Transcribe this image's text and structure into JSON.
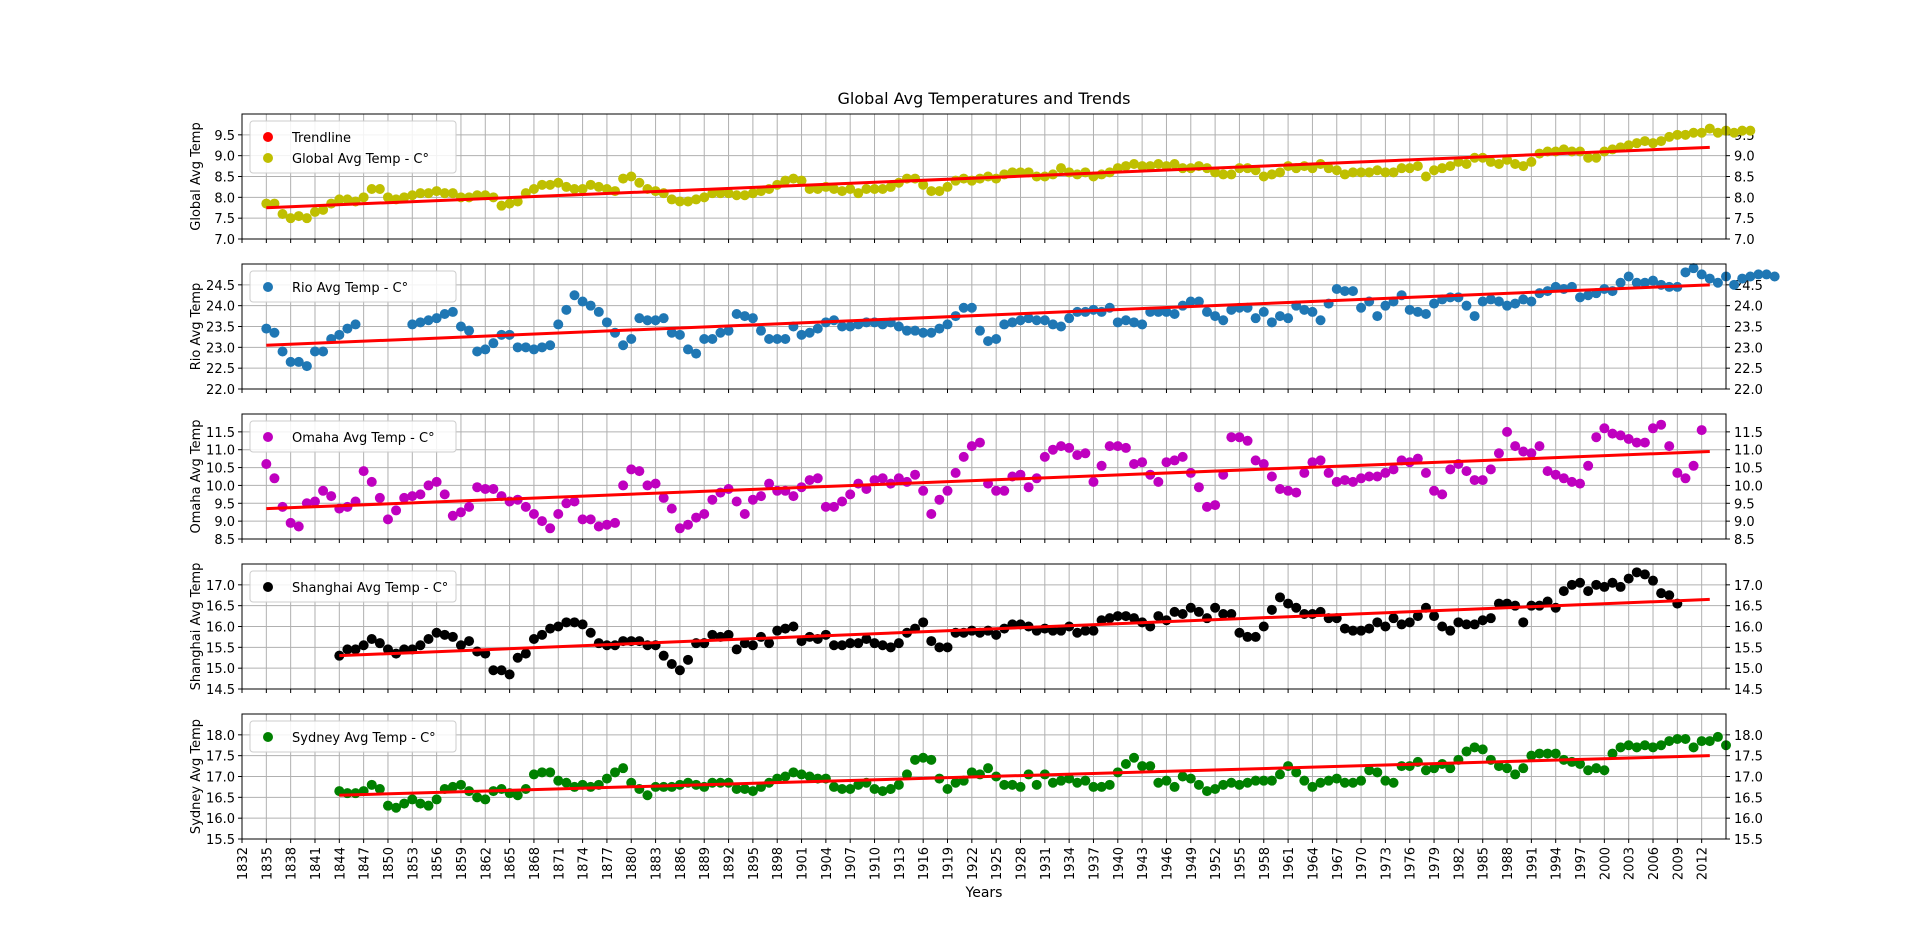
{
  "chart_data": {
    "type": "scatter",
    "title": "Global Avg Temperatures and Trends",
    "xlabel": "Years",
    "xlim": [
      1832,
      2015
    ],
    "xticks": [
      1832,
      1835,
      1838,
      1841,
      1844,
      1847,
      1850,
      1853,
      1856,
      1859,
      1862,
      1865,
      1868,
      1871,
      1874,
      1877,
      1880,
      1883,
      1886,
      1889,
      1892,
      1895,
      1898,
      1901,
      1904,
      1907,
      1910,
      1913,
      1916,
      1919,
      1922,
      1925,
      1928,
      1931,
      1934,
      1937,
      1940,
      1943,
      1946,
      1949,
      1952,
      1955,
      1958,
      1961,
      1964,
      1967,
      1970,
      1973,
      1976,
      1979,
      1982,
      1985,
      1988,
      1991,
      1994,
      1997,
      2000,
      2003,
      2006,
      2009,
      2012
    ],
    "legend_position": "upper-left",
    "grid": true,
    "trend_color": "#ff0000",
    "subplots": [
      {
        "id": "global",
        "ylabel": "Global Avg Temp",
        "ylim": [
          7.0,
          10.0
        ],
        "yticks": [
          "7.0",
          "7.5",
          "8.0",
          "8.5",
          "9.0",
          "9.5"
        ],
        "color": "#bfbf00",
        "legend": [
          "Trendline",
          "Global Avg Temp - C°"
        ],
        "trend": {
          "x": [
            1835,
            2013
          ],
          "y": [
            7.75,
            9.2
          ]
        },
        "start_year": 1835,
        "values": [
          7.85,
          7.85,
          7.6,
          7.5,
          7.55,
          7.5,
          7.65,
          7.7,
          7.85,
          7.95,
          7.95,
          7.9,
          8.0,
          8.2,
          8.2,
          8.0,
          7.95,
          8.0,
          8.05,
          8.1,
          8.1,
          8.15,
          8.1,
          8.1,
          8.0,
          8.0,
          8.05,
          8.05,
          8.0,
          7.8,
          7.85,
          7.9,
          8.1,
          8.2,
          8.3,
          8.3,
          8.35,
          8.25,
          8.2,
          8.2,
          8.3,
          8.25,
          8.2,
          8.15,
          8.45,
          8.5,
          8.35,
          8.2,
          8.15,
          8.1,
          7.95,
          7.9,
          7.9,
          7.95,
          8.0,
          8.1,
          8.1,
          8.1,
          8.05,
          8.05,
          8.1,
          8.15,
          8.2,
          8.3,
          8.4,
          8.45,
          8.4,
          8.2,
          8.2,
          8.25,
          8.2,
          8.15,
          8.2,
          8.1,
          8.2,
          8.2,
          8.2,
          8.25,
          8.35,
          8.45,
          8.45,
          8.3,
          8.15,
          8.15,
          8.25,
          8.4,
          8.45,
          8.4,
          8.45,
          8.5,
          8.45,
          8.55,
          8.6,
          8.6,
          8.6,
          8.5,
          8.5,
          8.55,
          8.7,
          8.6,
          8.55,
          8.6,
          8.5,
          8.55,
          8.6,
          8.7,
          8.75,
          8.8,
          8.75,
          8.75,
          8.8,
          8.75,
          8.8,
          8.7,
          8.7,
          8.75,
          8.7,
          8.6,
          8.55,
          8.55,
          8.7,
          8.7,
          8.65,
          8.5,
          8.55,
          8.6,
          8.75,
          8.7,
          8.75,
          8.7,
          8.8,
          8.7,
          8.65,
          8.55,
          8.6,
          8.6,
          8.6,
          8.65,
          8.6,
          8.6,
          8.7,
          8.7,
          8.75,
          8.5,
          8.65,
          8.7,
          8.75,
          8.85,
          8.8,
          8.95,
          8.95,
          8.85,
          8.8,
          8.9,
          8.8,
          8.75,
          8.85,
          9.05,
          9.1,
          9.1,
          9.15,
          9.1,
          9.1,
          8.95,
          8.95,
          9.1,
          9.15,
          9.2,
          9.25,
          9.3,
          9.35,
          9.3,
          9.35,
          9.45,
          9.5,
          9.5,
          9.55,
          9.55,
          9.65,
          9.55,
          9.6,
          9.55,
          9.6,
          9.6
        ]
      },
      {
        "id": "rio",
        "ylabel": "Rio Avg Temp",
        "ylim": [
          22.0,
          25.0
        ],
        "yticks": [
          "22.0",
          "22.5",
          "23.0",
          "23.5",
          "24.0",
          "24.5"
        ],
        "color": "#1f77b4",
        "legend": [
          "Rio Avg Temp - C°"
        ],
        "trend": {
          "x": [
            1835,
            2013
          ],
          "y": [
            23.05,
            24.5
          ]
        },
        "start_year": 1835,
        "values": [
          23.45,
          23.35,
          22.9,
          22.65,
          22.65,
          22.55,
          22.9,
          22.9,
          23.2,
          23.3,
          23.45,
          23.55,
          null,
          null,
          null,
          null,
          null,
          null,
          23.55,
          23.6,
          23.65,
          23.7,
          23.8,
          23.85,
          23.5,
          23.4,
          22.9,
          22.95,
          23.1,
          23.3,
          23.3,
          23.0,
          23.0,
          22.95,
          23.0,
          23.05,
          23.55,
          23.9,
          24.25,
          24.1,
          24.0,
          23.85,
          23.6,
          23.35,
          23.05,
          23.2,
          23.7,
          23.65,
          23.65,
          23.7,
          23.35,
          23.3,
          22.95,
          22.85,
          23.2,
          23.2,
          23.35,
          23.4,
          23.8,
          23.75,
          23.7,
          23.4,
          23.2,
          23.2,
          23.2,
          23.5,
          23.3,
          23.35,
          23.45,
          23.6,
          23.65,
          23.5,
          23.5,
          23.55,
          23.6,
          23.6,
          23.55,
          23.6,
          23.5,
          23.4,
          23.4,
          23.35,
          23.35,
          23.45,
          23.55,
          23.75,
          23.95,
          23.95,
          23.4,
          23.15,
          23.2,
          23.55,
          23.6,
          23.65,
          23.7,
          23.65,
          23.65,
          23.55,
          23.5,
          23.7,
          23.85,
          23.85,
          23.9,
          23.85,
          23.95,
          23.6,
          23.65,
          23.6,
          23.55,
          23.85,
          23.85,
          23.85,
          23.8,
          24.0,
          24.1,
          24.1,
          23.85,
          23.75,
          23.65,
          23.9,
          23.95,
          23.95,
          23.7,
          23.85,
          23.6,
          23.75,
          23.7,
          24.0,
          23.9,
          23.85,
          23.65,
          24.05,
          24.4,
          24.35,
          24.35,
          23.95,
          24.1,
          23.75,
          24.0,
          24.1,
          24.25,
          23.9,
          23.85,
          23.8,
          24.05,
          24.15,
          24.2,
          24.2,
          24.0,
          23.75,
          24.1,
          24.15,
          24.1,
          24.0,
          24.05,
          24.15,
          24.1,
          24.3,
          24.35,
          24.45,
          24.4,
          24.45,
          24.2,
          24.25,
          24.3,
          24.4,
          24.35,
          24.55,
          24.7,
          24.55,
          24.55,
          24.6,
          24.5,
          24.45,
          24.45,
          24.8,
          24.9,
          24.75,
          24.65,
          24.55,
          24.7,
          24.5,
          24.65,
          24.7,
          24.75,
          24.75,
          24.7
        ]
      },
      {
        "id": "omaha",
        "ylabel": "Omaha Avg Temp",
        "ylim": [
          8.5,
          12.0
        ],
        "yticks": [
          "8.5",
          "9.0",
          "9.5",
          "10.0",
          "10.5",
          "11.0",
          "11.5"
        ],
        "color": "#bf00bf",
        "legend": [
          "Omaha Avg Temp - C°"
        ],
        "trend": {
          "x": [
            1835,
            2013
          ],
          "y": [
            9.35,
            10.95
          ]
        },
        "start_year": 1835,
        "values": [
          10.6,
          10.2,
          9.4,
          8.95,
          8.85,
          9.5,
          9.55,
          9.85,
          9.7,
          9.35,
          9.4,
          9.55,
          10.4,
          10.1,
          9.65,
          9.05,
          9.3,
          9.65,
          9.7,
          9.75,
          10.0,
          10.1,
          9.75,
          9.15,
          9.25,
          9.4,
          9.95,
          9.9,
          9.9,
          9.7,
          9.55,
          9.6,
          9.4,
          9.2,
          9.0,
          8.8,
          9.2,
          9.5,
          9.55,
          9.05,
          9.05,
          8.85,
          8.9,
          8.95,
          10.0,
          10.45,
          10.4,
          10.0,
          10.05,
          9.65,
          9.35,
          8.8,
          8.9,
          9.1,
          9.2,
          9.6,
          9.8,
          9.9,
          9.55,
          9.2,
          9.6,
          9.7,
          10.05,
          9.85,
          9.85,
          9.7,
          9.95,
          10.15,
          10.2,
          9.4,
          9.4,
          9.55,
          9.75,
          10.05,
          9.9,
          10.15,
          10.2,
          10.05,
          10.2,
          10.1,
          10.3,
          9.85,
          9.2,
          9.6,
          9.85,
          10.35,
          10.8,
          11.1,
          11.2,
          10.05,
          9.85,
          9.85,
          10.25,
          10.3,
          9.95,
          10.2,
          10.8,
          11.0,
          11.1,
          11.05,
          10.85,
          10.9,
          10.1,
          10.55,
          11.1,
          11.1,
          11.05,
          10.6,
          10.65,
          10.3,
          10.1,
          10.65,
          10.7,
          10.8,
          10.35,
          9.95,
          9.4,
          9.45,
          10.3,
          11.35,
          11.35,
          11.25,
          10.7,
          10.6,
          10.25,
          9.9,
          9.85,
          9.8,
          10.35,
          10.65,
          10.7,
          10.35,
          10.1,
          10.15,
          10.1,
          10.2,
          10.25,
          10.25,
          10.35,
          10.45,
          10.7,
          10.65,
          10.75,
          10.35,
          9.85,
          9.75,
          10.45,
          10.6,
          10.4,
          10.15,
          10.15,
          10.45,
          10.9,
          11.5,
          11.1,
          10.95,
          10.9,
          11.1,
          10.4,
          10.3,
          10.2,
          10.1,
          10.05,
          10.55,
          11.35,
          11.6,
          11.45,
          11.4,
          11.3,
          11.2,
          11.2,
          11.6,
          11.7,
          11.1,
          10.35,
          10.2,
          10.55,
          11.55
        ]
      },
      {
        "id": "shanghai",
        "ylabel": "Shanghai Avg Temp",
        "ylim": [
          14.5,
          17.5
        ],
        "yticks": [
          "14.5",
          "15.0",
          "15.5",
          "16.0",
          "16.5",
          "17.0"
        ],
        "color": "#000000",
        "legend": [
          "Shanghai Avg Temp - C°"
        ],
        "trend": {
          "x": [
            1844,
            2013
          ],
          "y": [
            15.3,
            16.65
          ]
        },
        "start_year": 1844,
        "values": [
          15.3,
          15.45,
          15.45,
          15.55,
          15.7,
          15.6,
          15.45,
          15.35,
          15.45,
          15.45,
          15.55,
          15.7,
          15.85,
          15.8,
          15.75,
          15.55,
          15.65,
          15.4,
          15.35,
          14.95,
          14.95,
          14.85,
          15.25,
          15.35,
          15.7,
          15.8,
          15.95,
          16.0,
          16.1,
          16.1,
          16.05,
          15.85,
          15.6,
          15.55,
          15.55,
          15.65,
          15.65,
          15.65,
          15.55,
          15.55,
          15.3,
          15.1,
          14.95,
          15.2,
          15.6,
          15.6,
          15.8,
          15.75,
          15.8,
          15.45,
          15.6,
          15.55,
          15.75,
          15.6,
          15.9,
          15.95,
          16.0,
          15.65,
          15.75,
          15.7,
          15.8,
          15.55,
          15.55,
          15.6,
          15.6,
          15.7,
          15.6,
          15.55,
          15.5,
          15.6,
          15.85,
          15.95,
          16.1,
          15.65,
          15.5,
          15.5,
          15.85,
          15.85,
          15.9,
          15.85,
          15.9,
          15.8,
          15.95,
          16.05,
          16.05,
          16.0,
          15.9,
          15.95,
          15.9,
          15.9,
          16.0,
          15.85,
          15.9,
          15.9,
          16.15,
          16.2,
          16.25,
          16.25,
          16.2,
          16.1,
          16.0,
          16.25,
          16.15,
          16.35,
          16.3,
          16.45,
          16.35,
          16.2,
          16.45,
          16.3,
          16.3,
          15.85,
          15.75,
          15.75,
          16.0,
          16.4,
          16.7,
          16.55,
          16.45,
          16.3,
          16.3,
          16.35,
          16.2,
          16.2,
          15.95,
          15.9,
          15.9,
          15.95,
          16.1,
          16.0,
          16.2,
          16.05,
          16.1,
          16.25,
          16.45,
          16.25,
          16.0,
          15.9,
          16.1,
          16.05,
          16.05,
          16.15,
          16.2,
          16.55,
          16.55,
          16.5,
          16.1,
          16.5,
          16.5,
          16.6,
          16.45,
          16.85,
          17.0,
          17.05,
          16.85,
          17.0,
          16.95,
          17.05,
          16.95,
          17.15,
          17.3,
          17.25,
          17.1,
          16.8,
          16.75,
          16.55
        ]
      },
      {
        "id": "sydney",
        "ylabel": "Sydney Avg Temp",
        "ylim": [
          15.5,
          18.5
        ],
        "yticks": [
          "15.5",
          "16.0",
          "16.5",
          "17.0",
          "17.5",
          "18.0"
        ],
        "color": "#008000",
        "legend": [
          "Sydney Avg Temp - C°"
        ],
        "trend": {
          "x": [
            1844,
            2013
          ],
          "y": [
            16.55,
            17.5
          ]
        },
        "start_year": 1844,
        "values": [
          16.65,
          16.6,
          16.6,
          16.65,
          16.8,
          16.7,
          16.3,
          16.25,
          16.35,
          16.45,
          16.35,
          16.3,
          16.45,
          16.7,
          16.75,
          16.8,
          16.65,
          16.5,
          16.45,
          16.65,
          16.7,
          16.6,
          16.55,
          16.7,
          17.05,
          17.1,
          17.1,
          16.9,
          16.85,
          16.75,
          16.8,
          16.75,
          16.8,
          16.95,
          17.1,
          17.2,
          16.85,
          16.7,
          16.55,
          16.75,
          16.75,
          16.75,
          16.8,
          16.85,
          16.8,
          16.75,
          16.85,
          16.85,
          16.85,
          16.7,
          16.7,
          16.65,
          16.75,
          16.85,
          16.95,
          17.0,
          17.1,
          17.05,
          17.0,
          16.95,
          16.95,
          16.75,
          16.7,
          16.7,
          16.8,
          16.85,
          16.7,
          16.65,
          16.7,
          16.8,
          17.05,
          17.4,
          17.45,
          17.4,
          16.95,
          16.7,
          16.85,
          16.9,
          17.1,
          17.05,
          17.2,
          17.0,
          16.8,
          16.8,
          16.75,
          17.05,
          16.8,
          17.05,
          16.85,
          16.9,
          16.95,
          16.85,
          16.9,
          16.75,
          16.75,
          16.8,
          17.1,
          17.3,
          17.45,
          17.25,
          17.25,
          16.85,
          16.9,
          16.75,
          17.0,
          16.95,
          16.8,
          16.65,
          16.7,
          16.8,
          16.85,
          16.8,
          16.85,
          16.9,
          16.9,
          16.9,
          17.05,
          17.25,
          17.1,
          16.9,
          16.75,
          16.85,
          16.9,
          16.95,
          16.85,
          16.85,
          16.9,
          17.15,
          17.1,
          16.9,
          16.85,
          17.25,
          17.25,
          17.35,
          17.15,
          17.2,
          17.3,
          17.2,
          17.4,
          17.6,
          17.7,
          17.65,
          17.4,
          17.25,
          17.2,
          17.05,
          17.2,
          17.5,
          17.55,
          17.55,
          17.55,
          17.4,
          17.35,
          17.3,
          17.15,
          17.2,
          17.15,
          17.55,
          17.7,
          17.75,
          17.7,
          17.75,
          17.7,
          17.75,
          17.85,
          17.9,
          17.9,
          17.7,
          17.85,
          17.85,
          17.95,
          17.75
        ]
      }
    ]
  }
}
